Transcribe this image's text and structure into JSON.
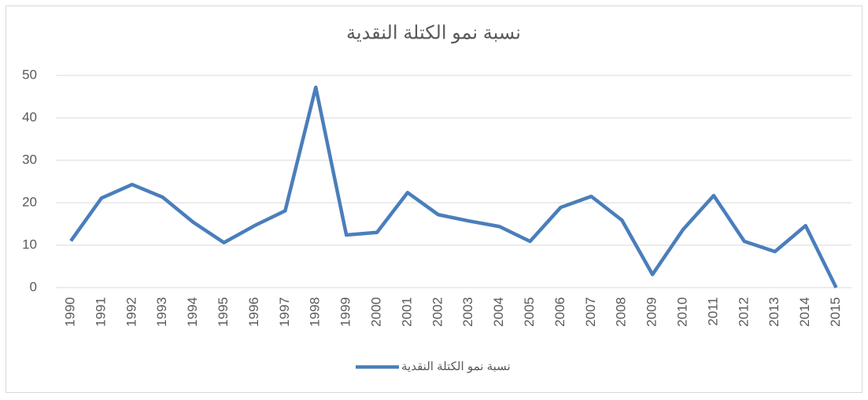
{
  "chart_data": {
    "type": "line",
    "title": "نسبة نمو الكتلة النقدية",
    "categories": [
      "1990",
      "1991",
      "1992",
      "1993",
      "1994",
      "1995",
      "1996",
      "1997",
      "1998",
      "1999",
      "2000",
      "2001",
      "2002",
      "2003",
      "2004",
      "2005",
      "2006",
      "2007",
      "2008",
      "2009",
      "2010",
      "2011",
      "2012",
      "2013",
      "2014",
      "2015"
    ],
    "series": [
      {
        "name": "نسبة نمو الكتلة النقدية",
        "color": "#4a7ebb",
        "values": [
          11,
          21.1,
          24.3,
          21.3,
          15.4,
          10.6,
          14.6,
          18.1,
          47.2,
          12.4,
          13,
          22.4,
          17.2,
          15.7,
          14.4,
          10.9,
          18.9,
          21.5,
          15.9,
          3.1,
          13.7,
          21.7,
          10.9,
          8.5,
          14.6,
          0
        ]
      }
    ],
    "ylim": [
      0,
      50
    ],
    "yticks": [
      0,
      10,
      20,
      30,
      40,
      50
    ],
    "grid": true,
    "legend": "bottom"
  }
}
